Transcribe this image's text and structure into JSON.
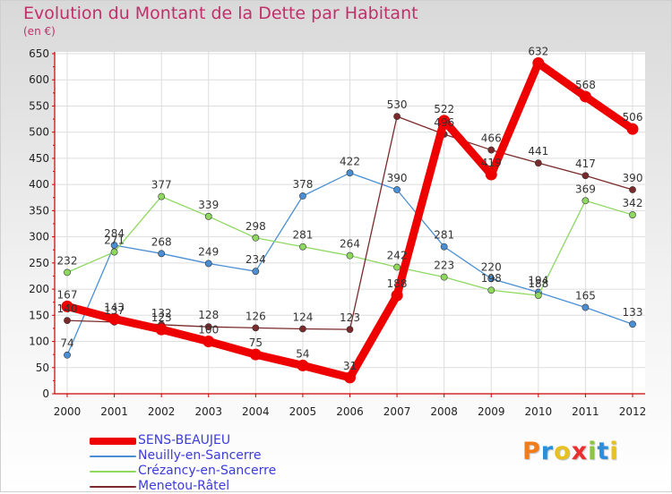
{
  "title": "Evolution du Montant de la Dette par Habitant",
  "subtitle": "(en €)",
  "logo_text": "Proxiti",
  "chart_data": {
    "type": "line",
    "title": "Evolution du Montant de la Dette par Habitant",
    "subtitle": "(en €)",
    "xlabel": "",
    "ylabel": "",
    "ylim": [
      0,
      650
    ],
    "yticks": [
      0,
      50,
      100,
      150,
      200,
      250,
      300,
      350,
      400,
      450,
      500,
      550,
      600,
      650
    ],
    "categories": [
      "2000",
      "2001",
      "2002",
      "2003",
      "2004",
      "2005",
      "2006",
      "2007",
      "2008",
      "2009",
      "2010",
      "2011",
      "2012"
    ],
    "grid": true,
    "legend_position": "bottom-left",
    "series": [
      {
        "name": "SENS-BEAUJEU",
        "color": "#ee0000",
        "emphasis": true,
        "values": [
          167,
          143,
          123,
          100,
          75,
          54,
          31,
          188,
          522,
          419,
          632,
          568,
          506
        ]
      },
      {
        "name": "Neuilly-en-Sancerre",
        "color": "#4a8fd4",
        "values": [
          74,
          284,
          268,
          249,
          234,
          378,
          422,
          390,
          281,
          220,
          194,
          165,
          133
        ]
      },
      {
        "name": "Crézancy-en-Sancerre",
        "color": "#8ed860",
        "values": [
          232,
          271,
          377,
          339,
          298,
          281,
          264,
          242,
          223,
          198,
          188,
          369,
          342
        ]
      },
      {
        "name": "Menetou-Râtel",
        "color": "#7a2a2a",
        "values": [
          140,
          137,
          132,
          128,
          126,
          124,
          123,
          530,
          496,
          466,
          441,
          417,
          390
        ]
      }
    ]
  }
}
